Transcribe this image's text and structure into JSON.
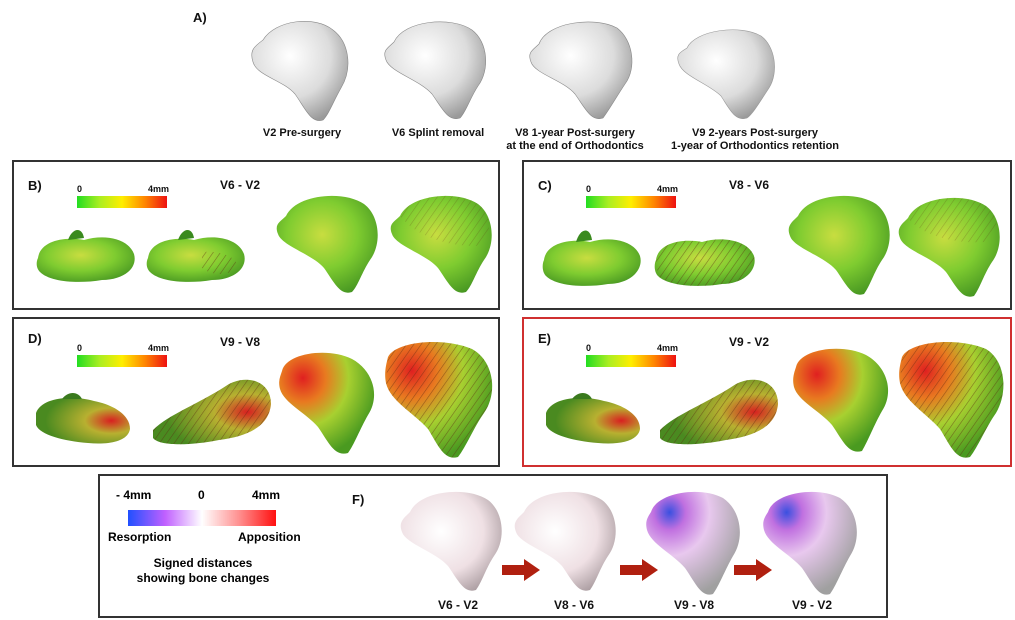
{
  "panelA": {
    "label": "A)",
    "captions": [
      [
        "V2 Pre-surgery"
      ],
      [
        "V6 Splint removal"
      ],
      [
        "V8 1-year Post-surgery",
        "at the end of Orthodontics"
      ],
      [
        "V9 2-years Post-surgery",
        "1-year of Orthodontics retention"
      ]
    ]
  },
  "panelB": {
    "label": "B)",
    "title": "V6 - V2",
    "scale_min": "0",
    "scale_max": "4mm"
  },
  "panelC": {
    "label": "C)",
    "title": "V8 - V6",
    "scale_min": "0",
    "scale_max": "4mm"
  },
  "panelD": {
    "label": "D)",
    "title": "V9 - V8",
    "scale_min": "0",
    "scale_max": "4mm"
  },
  "panelE": {
    "label": "E)",
    "title": "V9 - V2",
    "scale_min": "0",
    "scale_max": "4mm"
  },
  "panelF": {
    "label": "F)",
    "scale_min": "- 4mm",
    "scale_mid": "0",
    "scale_max": "4mm",
    "resorption": "Resorption",
    "apposition": "Apposition",
    "desc_line1": "Signed distances",
    "desc_line2": "showing bone changes",
    "captions": [
      "V6 - V2",
      "V8 - V6",
      "V9 - V8",
      "V9 - V2"
    ]
  },
  "colors": {
    "panel_border": "#333333",
    "highlight_border": "#d03030",
    "arrow": "#b02010"
  }
}
